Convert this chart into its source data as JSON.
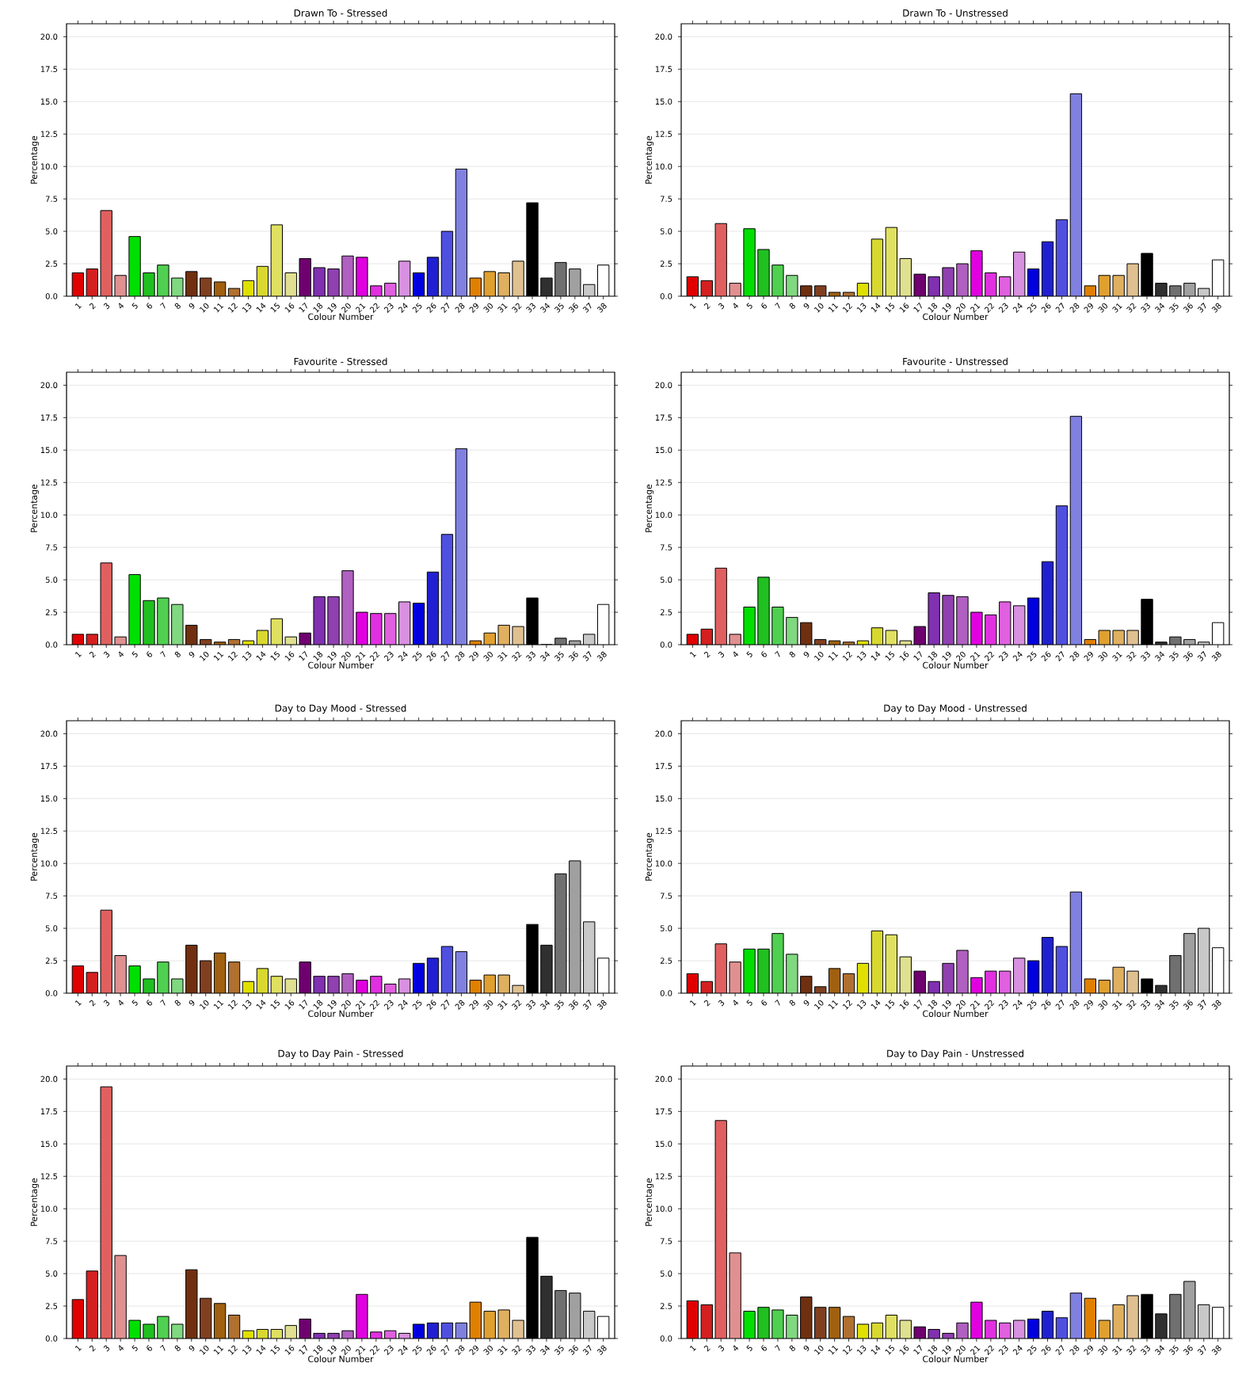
{
  "chart_data": [
    {
      "type": "bar",
      "title": "Drawn To - Stressed",
      "xlabel": "Colour Number",
      "ylabel": "Percentage",
      "grid": "y",
      "ylim": [
        0,
        21
      ],
      "yticks": [
        {
          "value": 0,
          "label": "0.0"
        },
        {
          "value": 2.5,
          "label": "2.5"
        },
        {
          "value": 5,
          "label": "5.0"
        },
        {
          "value": 7.5,
          "label": "7.5"
        },
        {
          "value": 10,
          "label": "10.0"
        },
        {
          "value": 12.5,
          "label": "12.5"
        },
        {
          "value": 15,
          "label": "15.0"
        },
        {
          "value": 17.5,
          "label": "17.5"
        },
        {
          "value": 20,
          "label": "20.0"
        }
      ],
      "categories": [
        "1",
        "2",
        "3",
        "4",
        "5",
        "6",
        "7",
        "8",
        "9",
        "10",
        "11",
        "12",
        "13",
        "14",
        "15",
        "16",
        "17",
        "18",
        "19",
        "20",
        "21",
        "22",
        "23",
        "24",
        "25",
        "26",
        "27",
        "28",
        "29",
        "30",
        "31",
        "32",
        "33",
        "34",
        "35",
        "36",
        "37",
        "38"
      ],
      "colors": [
        "#e00000",
        "#d42020",
        "#e06060",
        "#e09090",
        "#00e000",
        "#20c020",
        "#50d050",
        "#80d880",
        "#703010",
        "#804020",
        "#a06010",
        "#b07030",
        "#e0e000",
        "#d8d830",
        "#e0e060",
        "#e0e090",
        "#700070",
        "#8030b0",
        "#9040b0",
        "#b060c0",
        "#e000e0",
        "#e030e0",
        "#e060e0",
        "#d890e0",
        "#0000e0",
        "#2020d0",
        "#5050e0",
        "#8080e0",
        "#e08000",
        "#e0a030",
        "#e0b060",
        "#e0c090",
        "#000000",
        "#303030",
        "#707070",
        "#a0a0a0",
        "#c8c8c8",
        "#ffffff"
      ],
      "values": [
        1.8,
        2.1,
        6.6,
        1.6,
        4.6,
        1.8,
        2.4,
        1.4,
        1.9,
        1.4,
        1.1,
        0.6,
        1.2,
        2.3,
        5.5,
        1.8,
        2.9,
        2.2,
        2.1,
        3.1,
        3.0,
        0.8,
        1.0,
        2.7,
        1.8,
        3.0,
        5.0,
        9.8,
        1.4,
        1.9,
        1.8,
        2.7,
        7.2,
        1.4,
        2.6,
        2.1,
        0.9,
        2.4
      ]
    },
    {
      "type": "bar",
      "title": "Drawn To - Unstressed",
      "xlabel": "Colour Number",
      "ylabel": "Percentage",
      "grid": "y",
      "ylim": [
        0,
        21
      ],
      "yticks": [
        {
          "value": 0,
          "label": "0.0"
        },
        {
          "value": 2.5,
          "label": "2.5"
        },
        {
          "value": 5,
          "label": "5.0"
        },
        {
          "value": 7.5,
          "label": "7.5"
        },
        {
          "value": 10,
          "label": "10.0"
        },
        {
          "value": 12.5,
          "label": "12.5"
        },
        {
          "value": 15,
          "label": "15.0"
        },
        {
          "value": 17.5,
          "label": "17.5"
        },
        {
          "value": 20,
          "label": "20.0"
        }
      ],
      "categories": [
        "1",
        "2",
        "3",
        "4",
        "5",
        "6",
        "7",
        "8",
        "9",
        "10",
        "11",
        "12",
        "13",
        "14",
        "15",
        "16",
        "17",
        "18",
        "19",
        "20",
        "21",
        "22",
        "23",
        "24",
        "25",
        "26",
        "27",
        "28",
        "29",
        "30",
        "31",
        "32",
        "33",
        "34",
        "35",
        "36",
        "37",
        "38"
      ],
      "colors": [
        "#e00000",
        "#d42020",
        "#e06060",
        "#e09090",
        "#00e000",
        "#20c020",
        "#50d050",
        "#80d880",
        "#703010",
        "#804020",
        "#a06010",
        "#b07030",
        "#e0e000",
        "#d8d830",
        "#e0e060",
        "#e0e090",
        "#700070",
        "#8030b0",
        "#9040b0",
        "#b060c0",
        "#e000e0",
        "#e030e0",
        "#e060e0",
        "#d890e0",
        "#0000e0",
        "#2020d0",
        "#5050e0",
        "#8080e0",
        "#e08000",
        "#e0a030",
        "#e0b060",
        "#e0c090",
        "#000000",
        "#303030",
        "#707070",
        "#a0a0a0",
        "#c8c8c8",
        "#ffffff"
      ],
      "values": [
        1.5,
        1.2,
        5.6,
        1.0,
        5.2,
        3.6,
        2.4,
        1.6,
        0.8,
        0.8,
        0.3,
        0.3,
        1.0,
        4.4,
        5.3,
        2.9,
        1.7,
        1.5,
        2.2,
        2.5,
        3.5,
        1.8,
        1.5,
        3.4,
        2.1,
        4.2,
        5.9,
        15.6,
        0.8,
        1.6,
        1.6,
        2.5,
        3.3,
        1.0,
        0.8,
        1.0,
        0.6,
        2.8
      ]
    },
    {
      "type": "bar",
      "title": "Favourite - Stressed",
      "xlabel": "Colour Number",
      "ylabel": "Percentage",
      "grid": "y",
      "ylim": [
        0,
        21
      ],
      "yticks": [
        {
          "value": 0,
          "label": "0.0"
        },
        {
          "value": 2.5,
          "label": "2.5"
        },
        {
          "value": 5,
          "label": "5.0"
        },
        {
          "value": 7.5,
          "label": "7.5"
        },
        {
          "value": 10,
          "label": "10.0"
        },
        {
          "value": 12.5,
          "label": "12.5"
        },
        {
          "value": 15,
          "label": "15.0"
        },
        {
          "value": 17.5,
          "label": "17.5"
        },
        {
          "value": 20,
          "label": "20.0"
        }
      ],
      "categories": [
        "1",
        "2",
        "3",
        "4",
        "5",
        "6",
        "7",
        "8",
        "9",
        "10",
        "11",
        "12",
        "13",
        "14",
        "15",
        "16",
        "17",
        "18",
        "19",
        "20",
        "21",
        "22",
        "23",
        "24",
        "25",
        "26",
        "27",
        "28",
        "29",
        "30",
        "31",
        "32",
        "33",
        "34",
        "35",
        "36",
        "37",
        "38"
      ],
      "colors": [
        "#e00000",
        "#d42020",
        "#e06060",
        "#e09090",
        "#00e000",
        "#20c020",
        "#50d050",
        "#80d880",
        "#703010",
        "#804020",
        "#a06010",
        "#b07030",
        "#e0e000",
        "#d8d830",
        "#e0e060",
        "#e0e090",
        "#700070",
        "#8030b0",
        "#9040b0",
        "#b060c0",
        "#e000e0",
        "#e030e0",
        "#e060e0",
        "#d890e0",
        "#0000e0",
        "#2020d0",
        "#5050e0",
        "#8080e0",
        "#e08000",
        "#e0a030",
        "#e0b060",
        "#e0c090",
        "#000000",
        "#303030",
        "#707070",
        "#a0a0a0",
        "#c8c8c8",
        "#ffffff"
      ],
      "values": [
        0.8,
        0.8,
        6.3,
        0.6,
        5.4,
        3.4,
        3.6,
        3.1,
        1.5,
        0.4,
        0.2,
        0.4,
        0.3,
        1.1,
        2.0,
        0.6,
        0.9,
        3.7,
        3.7,
        5.7,
        2.5,
        2.4,
        2.4,
        3.3,
        3.2,
        5.6,
        8.5,
        15.1,
        0.3,
        0.9,
        1.5,
        1.4,
        3.6,
        0.0,
        0.5,
        0.3,
        0.8,
        3.1
      ]
    },
    {
      "type": "bar",
      "title": "Favourite - Unstressed",
      "xlabel": "Colour Number",
      "ylabel": "Percentage",
      "grid": "y",
      "ylim": [
        0,
        21
      ],
      "yticks": [
        {
          "value": 0,
          "label": "0.0"
        },
        {
          "value": 2.5,
          "label": "2.5"
        },
        {
          "value": 5,
          "label": "5.0"
        },
        {
          "value": 7.5,
          "label": "7.5"
        },
        {
          "value": 10,
          "label": "10.0"
        },
        {
          "value": 12.5,
          "label": "12.5"
        },
        {
          "value": 15,
          "label": "15.0"
        },
        {
          "value": 17.5,
          "label": "17.5"
        },
        {
          "value": 20,
          "label": "20.0"
        }
      ],
      "categories": [
        "1",
        "2",
        "3",
        "4",
        "5",
        "6",
        "7",
        "8",
        "9",
        "10",
        "11",
        "12",
        "13",
        "14",
        "15",
        "16",
        "17",
        "18",
        "19",
        "20",
        "21",
        "22",
        "23",
        "24",
        "25",
        "26",
        "27",
        "28",
        "29",
        "30",
        "31",
        "32",
        "33",
        "34",
        "35",
        "36",
        "37",
        "38"
      ],
      "colors": [
        "#e00000",
        "#d42020",
        "#e06060",
        "#e09090",
        "#00e000",
        "#20c020",
        "#50d050",
        "#80d880",
        "#703010",
        "#804020",
        "#a06010",
        "#b07030",
        "#e0e000",
        "#d8d830",
        "#e0e060",
        "#e0e090",
        "#700070",
        "#8030b0",
        "#9040b0",
        "#b060c0",
        "#e000e0",
        "#e030e0",
        "#e060e0",
        "#d890e0",
        "#0000e0",
        "#2020d0",
        "#5050e0",
        "#8080e0",
        "#e08000",
        "#e0a030",
        "#e0b060",
        "#e0c090",
        "#000000",
        "#303030",
        "#707070",
        "#a0a0a0",
        "#c8c8c8",
        "#ffffff"
      ],
      "values": [
        0.8,
        1.2,
        5.9,
        0.8,
        2.9,
        5.2,
        2.9,
        2.1,
        1.7,
        0.4,
        0.3,
        0.2,
        0.3,
        1.3,
        1.1,
        0.3,
        1.4,
        4.0,
        3.8,
        3.7,
        2.5,
        2.3,
        3.3,
        3.0,
        3.6,
        6.4,
        10.7,
        17.6,
        0.4,
        1.1,
        1.1,
        1.1,
        3.5,
        0.2,
        0.6,
        0.4,
        0.2,
        1.7
      ]
    },
    {
      "type": "bar",
      "title": "Day to Day Mood - Stressed",
      "xlabel": "Colour Number",
      "ylabel": "Percentage",
      "grid": "y",
      "ylim": [
        0,
        21
      ],
      "yticks": [
        {
          "value": 0,
          "label": "0.0"
        },
        {
          "value": 2.5,
          "label": "2.5"
        },
        {
          "value": 5,
          "label": "5.0"
        },
        {
          "value": 7.5,
          "label": "7.5"
        },
        {
          "value": 10,
          "label": "10.0"
        },
        {
          "value": 12.5,
          "label": "12.5"
        },
        {
          "value": 15,
          "label": "15.0"
        },
        {
          "value": 17.5,
          "label": "17.5"
        },
        {
          "value": 20,
          "label": "20.0"
        }
      ],
      "categories": [
        "1",
        "2",
        "3",
        "4",
        "5",
        "6",
        "7",
        "8",
        "9",
        "10",
        "11",
        "12",
        "13",
        "14",
        "15",
        "16",
        "17",
        "18",
        "19",
        "20",
        "21",
        "22",
        "23",
        "24",
        "25",
        "26",
        "27",
        "28",
        "29",
        "30",
        "31",
        "32",
        "33",
        "34",
        "35",
        "36",
        "37",
        "38"
      ],
      "colors": [
        "#e00000",
        "#d42020",
        "#e06060",
        "#e09090",
        "#00e000",
        "#20c020",
        "#50d050",
        "#80d880",
        "#703010",
        "#804020",
        "#a06010",
        "#b07030",
        "#e0e000",
        "#d8d830",
        "#e0e060",
        "#e0e090",
        "#700070",
        "#8030b0",
        "#9040b0",
        "#b060c0",
        "#e000e0",
        "#e030e0",
        "#e060e0",
        "#d890e0",
        "#0000e0",
        "#2020d0",
        "#5050e0",
        "#8080e0",
        "#e08000",
        "#e0a030",
        "#e0b060",
        "#e0c090",
        "#000000",
        "#303030",
        "#707070",
        "#a0a0a0",
        "#c8c8c8",
        "#ffffff"
      ],
      "values": [
        2.1,
        1.6,
        6.4,
        2.9,
        2.1,
        1.1,
        2.4,
        1.1,
        3.7,
        2.5,
        3.1,
        2.4,
        0.9,
        1.9,
        1.3,
        1.1,
        2.4,
        1.3,
        1.3,
        1.5,
        1.0,
        1.3,
        0.7,
        1.1,
        2.3,
        2.7,
        3.6,
        3.2,
        1.0,
        1.4,
        1.4,
        0.6,
        5.3,
        3.7,
        9.2,
        10.2,
        5.5,
        2.7
      ]
    },
    {
      "type": "bar",
      "title": "Day to Day Mood - Unstressed",
      "xlabel": "Colour Number",
      "ylabel": "Percentage",
      "grid": "y",
      "ylim": [
        0,
        21
      ],
      "yticks": [
        {
          "value": 0,
          "label": "0.0"
        },
        {
          "value": 2.5,
          "label": "2.5"
        },
        {
          "value": 5,
          "label": "5.0"
        },
        {
          "value": 7.5,
          "label": "7.5"
        },
        {
          "value": 10,
          "label": "10.0"
        },
        {
          "value": 12.5,
          "label": "12.5"
        },
        {
          "value": 15,
          "label": "15.0"
        },
        {
          "value": 17.5,
          "label": "17.5"
        },
        {
          "value": 20,
          "label": "20.0"
        }
      ],
      "categories": [
        "1",
        "2",
        "3",
        "4",
        "5",
        "6",
        "7",
        "8",
        "9",
        "10",
        "11",
        "12",
        "13",
        "14",
        "15",
        "16",
        "17",
        "18",
        "19",
        "20",
        "21",
        "22",
        "23",
        "24",
        "25",
        "26",
        "27",
        "28",
        "29",
        "30",
        "31",
        "32",
        "33",
        "34",
        "35",
        "36",
        "37",
        "38"
      ],
      "colors": [
        "#e00000",
        "#d42020",
        "#e06060",
        "#e09090",
        "#00e000",
        "#20c020",
        "#50d050",
        "#80d880",
        "#703010",
        "#804020",
        "#a06010",
        "#b07030",
        "#e0e000",
        "#d8d830",
        "#e0e060",
        "#e0e090",
        "#700070",
        "#8030b0",
        "#9040b0",
        "#b060c0",
        "#e000e0",
        "#e030e0",
        "#e060e0",
        "#d890e0",
        "#0000e0",
        "#2020d0",
        "#5050e0",
        "#8080e0",
        "#e08000",
        "#e0a030",
        "#e0b060",
        "#e0c090",
        "#000000",
        "#303030",
        "#707070",
        "#a0a0a0",
        "#c8c8c8",
        "#ffffff"
      ],
      "values": [
        1.5,
        0.9,
        3.8,
        2.4,
        3.4,
        3.4,
        4.6,
        3.0,
        1.3,
        0.5,
        1.9,
        1.5,
        2.3,
        4.8,
        4.5,
        2.8,
        1.7,
        0.9,
        2.3,
        3.3,
        1.2,
        1.7,
        1.7,
        2.7,
        2.5,
        4.3,
        3.6,
        7.8,
        1.1,
        1.0,
        2.0,
        1.7,
        1.1,
        0.6,
        2.9,
        4.6,
        5.0,
        3.5
      ]
    },
    {
      "type": "bar",
      "title": "Day to Day Pain - Stressed",
      "xlabel": "Colour Number",
      "ylabel": "Percentage",
      "grid": "y",
      "ylim": [
        0,
        21
      ],
      "yticks": [
        {
          "value": 0,
          "label": "0.0"
        },
        {
          "value": 2.5,
          "label": "2.5"
        },
        {
          "value": 5,
          "label": "5.0"
        },
        {
          "value": 7.5,
          "label": "7.5"
        },
        {
          "value": 10,
          "label": "10.0"
        },
        {
          "value": 12.5,
          "label": "12.5"
        },
        {
          "value": 15,
          "label": "15.0"
        },
        {
          "value": 17.5,
          "label": "17.5"
        },
        {
          "value": 20,
          "label": "20.0"
        }
      ],
      "categories": [
        "1",
        "2",
        "3",
        "4",
        "5",
        "6",
        "7",
        "8",
        "9",
        "10",
        "11",
        "12",
        "13",
        "14",
        "15",
        "16",
        "17",
        "18",
        "19",
        "20",
        "21",
        "22",
        "23",
        "24",
        "25",
        "26",
        "27",
        "28",
        "29",
        "30",
        "31",
        "32",
        "33",
        "34",
        "35",
        "36",
        "37",
        "38"
      ],
      "colors": [
        "#e00000",
        "#d42020",
        "#e06060",
        "#e09090",
        "#00e000",
        "#20c020",
        "#50d050",
        "#80d880",
        "#703010",
        "#804020",
        "#a06010",
        "#b07030",
        "#e0e000",
        "#d8d830",
        "#e0e060",
        "#e0e090",
        "#700070",
        "#8030b0",
        "#9040b0",
        "#b060c0",
        "#e000e0",
        "#e030e0",
        "#e060e0",
        "#d890e0",
        "#0000e0",
        "#2020d0",
        "#5050e0",
        "#8080e0",
        "#e08000",
        "#e0a030",
        "#e0b060",
        "#e0c090",
        "#000000",
        "#303030",
        "#707070",
        "#a0a0a0",
        "#c8c8c8",
        "#ffffff"
      ],
      "values": [
        3.0,
        5.2,
        19.4,
        6.4,
        1.4,
        1.1,
        1.7,
        1.1,
        5.3,
        3.1,
        2.7,
        1.8,
        0.6,
        0.7,
        0.7,
        1.0,
        1.5,
        0.4,
        0.4,
        0.6,
        3.4,
        0.5,
        0.6,
        0.4,
        1.1,
        1.2,
        1.2,
        1.2,
        2.8,
        2.1,
        2.2,
        1.4,
        7.8,
        4.8,
        3.7,
        3.5,
        2.1,
        1.7
      ]
    },
    {
      "type": "bar",
      "title": "Day to Day Pain - Unstressed",
      "xlabel": "Colour Number",
      "ylabel": "Percentage",
      "grid": "y",
      "ylim": [
        0,
        21
      ],
      "yticks": [
        {
          "value": 0,
          "label": "0.0"
        },
        {
          "value": 2.5,
          "label": "2.5"
        },
        {
          "value": 5,
          "label": "5.0"
        },
        {
          "value": 7.5,
          "label": "7.5"
        },
        {
          "value": 10,
          "label": "10.0"
        },
        {
          "value": 12.5,
          "label": "12.5"
        },
        {
          "value": 15,
          "label": "15.0"
        },
        {
          "value": 17.5,
          "label": "17.5"
        },
        {
          "value": 20,
          "label": "20.0"
        }
      ],
      "categories": [
        "1",
        "2",
        "3",
        "4",
        "5",
        "6",
        "7",
        "8",
        "9",
        "10",
        "11",
        "12",
        "13",
        "14",
        "15",
        "16",
        "17",
        "18",
        "19",
        "20",
        "21",
        "22",
        "23",
        "24",
        "25",
        "26",
        "27",
        "28",
        "29",
        "30",
        "31",
        "32",
        "33",
        "34",
        "35",
        "36",
        "37",
        "38"
      ],
      "colors": [
        "#e00000",
        "#d42020",
        "#e06060",
        "#e09090",
        "#00e000",
        "#20c020",
        "#50d050",
        "#80d880",
        "#703010",
        "#804020",
        "#a06010",
        "#b07030",
        "#e0e000",
        "#d8d830",
        "#e0e060",
        "#e0e090",
        "#700070",
        "#8030b0",
        "#9040b0",
        "#b060c0",
        "#e000e0",
        "#e030e0",
        "#e060e0",
        "#d890e0",
        "#0000e0",
        "#2020d0",
        "#5050e0",
        "#8080e0",
        "#e08000",
        "#e0a030",
        "#e0b060",
        "#e0c090",
        "#000000",
        "#303030",
        "#707070",
        "#a0a0a0",
        "#c8c8c8",
        "#ffffff"
      ],
      "values": [
        2.9,
        2.6,
        16.8,
        6.6,
        2.1,
        2.4,
        2.2,
        1.8,
        3.2,
        2.4,
        2.4,
        1.7,
        1.1,
        1.2,
        1.8,
        1.4,
        0.9,
        0.7,
        0.4,
        1.2,
        2.8,
        1.4,
        1.2,
        1.4,
        1.5,
        2.1,
        1.6,
        3.5,
        3.1,
        1.4,
        2.6,
        3.3,
        3.4,
        1.9,
        3.4,
        4.4,
        2.6,
        2.4
      ]
    }
  ]
}
